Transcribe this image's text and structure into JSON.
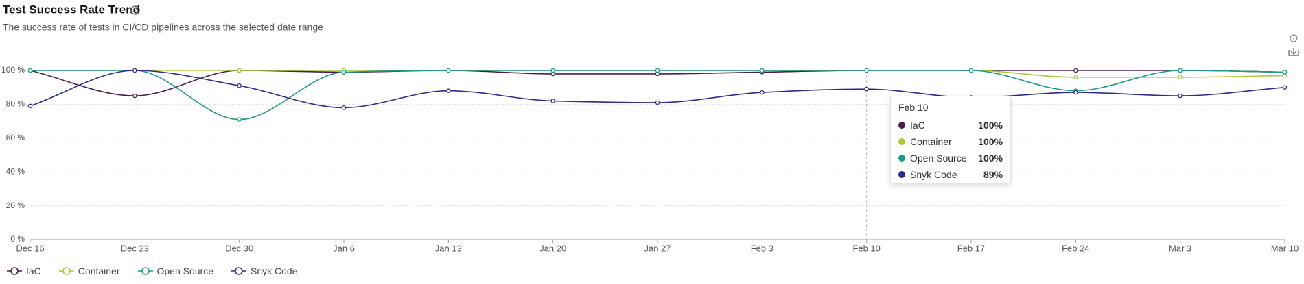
{
  "chart_data": {
    "type": "line",
    "title": "Test Success Rate Trend",
    "subtitle": "The success rate of tests in CI/CD pipelines across the selected date range",
    "categories": [
      "Dec 16",
      "Dec 23",
      "Dec 30",
      "Jan 6",
      "Jan 13",
      "Jan 20",
      "Jan 27",
      "Feb 3",
      "Feb 10",
      "Feb 17",
      "Feb 24",
      "Mar 3",
      "Mar 10"
    ],
    "series": [
      {
        "name": "IaC",
        "color": "#4b1b50",
        "values": [
          100,
          85,
          100,
          99,
          100,
          98,
          98,
          99,
          100,
          100,
          100,
          100,
          99
        ]
      },
      {
        "name": "Container",
        "color": "#a9c83b",
        "values": [
          100,
          100,
          100,
          100,
          100,
          100,
          100,
          100,
          100,
          100,
          96,
          96,
          97
        ]
      },
      {
        "name": "Open Source",
        "color": "#1d9a88",
        "values": [
          100,
          100,
          71,
          99,
          100,
          100,
          100,
          100,
          100,
          100,
          88,
          100,
          99
        ]
      },
      {
        "name": "Snyk Code",
        "color": "#2d2b8c",
        "values": [
          79,
          100,
          91,
          78,
          88,
          82,
          81,
          87,
          89,
          84,
          87,
          85,
          90
        ]
      }
    ],
    "ylim": [
      0,
      100
    ],
    "yticks": [
      {
        "value": 0,
        "label": "0 %"
      },
      {
        "value": 20,
        "label": "20 %"
      },
      {
        "value": 40,
        "label": "40 %"
      },
      {
        "value": 60,
        "label": "60 %"
      },
      {
        "value": 80,
        "label": "80 %"
      },
      {
        "value": 100,
        "label": "100 %"
      }
    ],
    "grid": true,
    "tooltip": {
      "title": "Feb 10",
      "items": [
        {
          "name": "IaC",
          "label": "100%"
        },
        {
          "name": "Container",
          "label": "100%"
        },
        {
          "name": "Open Source",
          "label": "100%"
        },
        {
          "name": "Snyk Code",
          "label": "89%"
        }
      ]
    }
  }
}
